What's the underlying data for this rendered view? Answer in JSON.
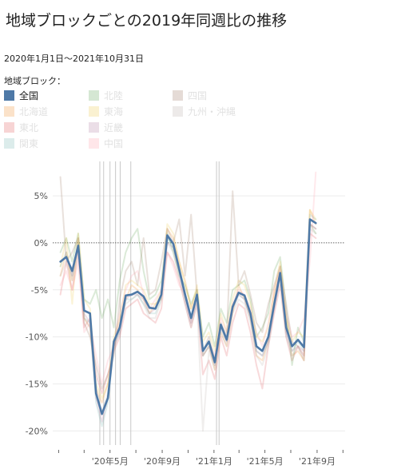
{
  "title": "地域ブロックごとの2019年同週比の推移",
  "subtitle": "2020年1月1日〜2021年10月31日",
  "legend": {
    "title": "地域ブロック：",
    "items": [
      {
        "label": "全国",
        "color": "#4e79a7",
        "active": true
      },
      {
        "label": "北海道",
        "color": "#f28e2b",
        "active": false
      },
      {
        "label": "東北",
        "color": "#e15759",
        "active": false
      },
      {
        "label": "関東",
        "color": "#76b7b2",
        "active": false
      },
      {
        "label": "北陸",
        "color": "#59a14f",
        "active": false
      },
      {
        "label": "東海",
        "color": "#edc948",
        "active": false
      },
      {
        "label": "近畿",
        "color": "#b07aa1",
        "active": false
      },
      {
        "label": "中国",
        "color": "#ff9da7",
        "active": false
      },
      {
        "label": "四国",
        "color": "#9c755f",
        "active": false
      },
      {
        "label": "九州・沖縄",
        "color": "#bab0ac",
        "active": false
      }
    ]
  },
  "chart_data": {
    "type": "line",
    "ylim": [
      -21.5,
      9
    ],
    "yticks": [
      5,
      0,
      -5,
      -10,
      -15,
      -20
    ],
    "ytick_labels": [
      "5%",
      "0%",
      "-5%",
      "-10%",
      "-15%",
      "-20%"
    ],
    "x_start": "2020-01-05",
    "x_step_days": 14,
    "xlim": [
      "2019-12-18",
      "2021-11-06"
    ],
    "xticks": [
      "2020-01-01",
      "2020-03-01",
      "2020-05-01",
      "2020-07-01",
      "2020-09-01",
      "2020-11-01",
      "2021-01-01",
      "2021-03-01",
      "2021-05-01",
      "2021-07-01",
      "2021-09-01",
      "2021-11-01"
    ],
    "xtick_labels": {
      "2020-05-01": "'20年5月",
      "2020-09-01": "'20年9月",
      "2021-01-01": "'21年1月",
      "2021-05-01": "'21年5月",
      "2021-09-01": "'21年9月"
    },
    "event_lines": [
      "2020-04-07",
      "2020-04-16",
      "2020-05-01",
      "2020-05-14",
      "2020-05-25",
      "2020-06-19",
      "2021-01-07",
      "2021-01-13"
    ],
    "zero_line": 0,
    "series": [
      {
        "values": [
          -2.0,
          -1.5,
          -3.0,
          -0.3,
          -7.2,
          -7.5,
          -16.0,
          -18.2,
          -16.5,
          -10.5,
          -9.0,
          -5.6,
          -5.5,
          -5.2,
          -5.7,
          -6.9,
          -7.0,
          -5.5,
          0.8,
          -0.1,
          -2.8,
          -5.5,
          -8.0,
          -5.5,
          -11.5,
          -10.5,
          -12.7,
          -8.7,
          -10.3,
          -6.8,
          -5.3,
          -5.6,
          -7.5,
          -11.0,
          -11.5,
          -10.0,
          -6.5,
          -3.2,
          -9.0,
          -11.0,
          -10.3,
          -11.1,
          2.5,
          2.1
        ]
      },
      {
        "values": [
          -3.5,
          -1.0,
          -4.0,
          0.5,
          -8.0,
          -9.0,
          -15.5,
          -17.0,
          -15.0,
          -11.0,
          -8.5,
          -6.0,
          -4.5,
          -5.0,
          -6.0,
          -7.5,
          -6.5,
          -6.0,
          1.5,
          0.5,
          -2.0,
          -4.0,
          -7.0,
          -5.0,
          -12.0,
          -11.0,
          -13.5,
          -9.5,
          -11.0,
          -7.5,
          -4.5,
          -6.0,
          -8.0,
          -12.0,
          -12.5,
          -10.5,
          -5.5,
          -2.5,
          -8.0,
          -12.0,
          -11.5,
          -12.5,
          3.5,
          2.0
        ]
      },
      {
        "values": [
          -5.5,
          -2.0,
          -5.0,
          -1.0,
          -9.0,
          -8.0,
          -14.0,
          -16.0,
          -14.0,
          -11.5,
          -10.0,
          -7.0,
          -6.5,
          -6.0,
          -7.5,
          -8.0,
          -8.5,
          -7.0,
          -1.0,
          -2.0,
          -4.0,
          -6.5,
          -9.0,
          -6.5,
          -14.0,
          -12.5,
          -14.5,
          -10.0,
          -12.0,
          -8.5,
          -6.5,
          -7.0,
          -9.5,
          -13.0,
          -15.5,
          -11.0,
          -7.5,
          -4.5,
          -10.0,
          -12.5,
          -11.0,
          -12.0,
          1.0,
          0.5
        ]
      },
      {
        "values": [
          -2.5,
          -1.0,
          -3.5,
          0.0,
          -8.0,
          -8.5,
          -17.0,
          -19.5,
          -17.0,
          -11.0,
          -9.5,
          -6.0,
          -6.0,
          -5.5,
          -6.5,
          -7.5,
          -7.5,
          -6.0,
          0.5,
          -0.5,
          -3.0,
          -6.0,
          -8.5,
          -6.0,
          -12.0,
          -11.0,
          -13.0,
          -9.0,
          -10.5,
          -7.0,
          -5.5,
          -6.0,
          -8.0,
          -11.5,
          -12.0,
          -10.5,
          -6.5,
          -3.5,
          -9.5,
          -11.5,
          -10.5,
          -11.5,
          3.0,
          2.5
        ]
      },
      {
        "values": [
          -1.0,
          0.5,
          -2.0,
          1.0,
          -6.0,
          -6.5,
          -5.0,
          -8.0,
          -6.0,
          -9.0,
          -4.0,
          -1.0,
          0.5,
          1.5,
          -3.0,
          -6.0,
          -5.5,
          -4.0,
          1.0,
          -1.0,
          -3.5,
          -4.5,
          -6.5,
          -5.0,
          -10.0,
          -8.5,
          -11.0,
          -7.0,
          -8.5,
          -5.0,
          -4.5,
          -4.0,
          -6.0,
          -10.0,
          -9.0,
          -7.5,
          -3.0,
          -1.5,
          -7.0,
          -13.0,
          -9.0,
          -10.5,
          2.0,
          1.0
        ]
      },
      {
        "values": [
          -2.5,
          0.5,
          -6.5,
          1.0,
          -6.0,
          -7.0,
          -15.0,
          -16.5,
          -15.0,
          -10.0,
          -8.0,
          -4.5,
          -4.0,
          -4.5,
          -5.0,
          -6.5,
          -6.5,
          -5.0,
          2.0,
          1.0,
          -2.0,
          -4.5,
          -7.0,
          -4.5,
          -10.5,
          -9.5,
          -11.5,
          -7.5,
          -9.5,
          -6.0,
          -4.0,
          -4.5,
          -6.5,
          -10.0,
          -10.5,
          -9.0,
          -5.0,
          -2.0,
          -8.0,
          -10.5,
          -9.5,
          -10.0,
          3.5,
          2.5
        ]
      },
      {
        "values": [
          -2.0,
          -1.5,
          -3.5,
          -0.5,
          -7.5,
          -8.5,
          -16.5,
          -19.0,
          -16.5,
          -11.0,
          -9.5,
          -6.0,
          -5.5,
          -5.5,
          -6.0,
          -7.5,
          -7.0,
          -5.5,
          0.0,
          -0.5,
          -3.0,
          -6.0,
          -8.5,
          -6.0,
          -12.0,
          -11.0,
          -13.0,
          -9.0,
          -10.5,
          -7.0,
          -5.5,
          -6.0,
          -8.0,
          -11.5,
          -12.0,
          -10.5,
          -7.0,
          -3.5,
          -9.5,
          -11.5,
          -11.0,
          -11.5,
          2.0,
          1.5
        ]
      },
      {
        "values": [
          -4.5,
          -3.0,
          -5.0,
          -2.0,
          -9.5,
          -8.5,
          -12.0,
          -15.0,
          -12.5,
          -11.0,
          -7.5,
          -5.0,
          -3.5,
          -3.0,
          -5.5,
          -7.0,
          -6.0,
          -5.0,
          -1.0,
          -2.5,
          -4.5,
          -5.5,
          -8.5,
          -5.5,
          -11.5,
          -10.5,
          -12.0,
          -8.0,
          -9.5,
          -6.5,
          -5.0,
          -5.5,
          -7.0,
          -9.5,
          -11.0,
          -8.5,
          -5.0,
          -3.0,
          -7.5,
          -10.0,
          -9.5,
          -8.0,
          -2.0,
          7.5
        ]
      },
      {
        "values": [
          7.0,
          -2.0,
          -1.0,
          0.5,
          -8.5,
          -10.0,
          -13.0,
          -15.5,
          -14.0,
          -12.0,
          -6.0,
          -3.0,
          -2.0,
          -4.5,
          0.5,
          -5.5,
          -5.0,
          -2.0,
          1.5,
          0.0,
          2.5,
          -3.5,
          3.0,
          -5.5,
          -11.5,
          -10.0,
          -12.5,
          -8.5,
          -10.0,
          5.5,
          -4.5,
          -3.0,
          -5.5,
          -8.5,
          -9.5,
          -6.5,
          -4.5,
          -2.5,
          -6.5,
          -10.5,
          -11.0,
          -12.5,
          2.0,
          1.5
        ]
      },
      {
        "values": [
          -3.5,
          -2.0,
          -4.0,
          -1.0,
          -8.0,
          -9.0,
          -15.5,
          -18.0,
          -16.0,
          -11.5,
          -9.0,
          -6.5,
          -6.0,
          -5.5,
          -6.5,
          -8.0,
          -8.0,
          -6.0,
          0.0,
          -1.0,
          -3.5,
          -6.5,
          -9.0,
          -6.5,
          -20.0,
          -11.5,
          -13.5,
          -9.5,
          -11.0,
          -7.5,
          -6.0,
          -6.5,
          -8.5,
          -12.0,
          -13.0,
          -11.0,
          -7.0,
          -4.0,
          -10.0,
          -12.0,
          -11.0,
          -12.0,
          1.5,
          1.0
        ]
      }
    ]
  }
}
